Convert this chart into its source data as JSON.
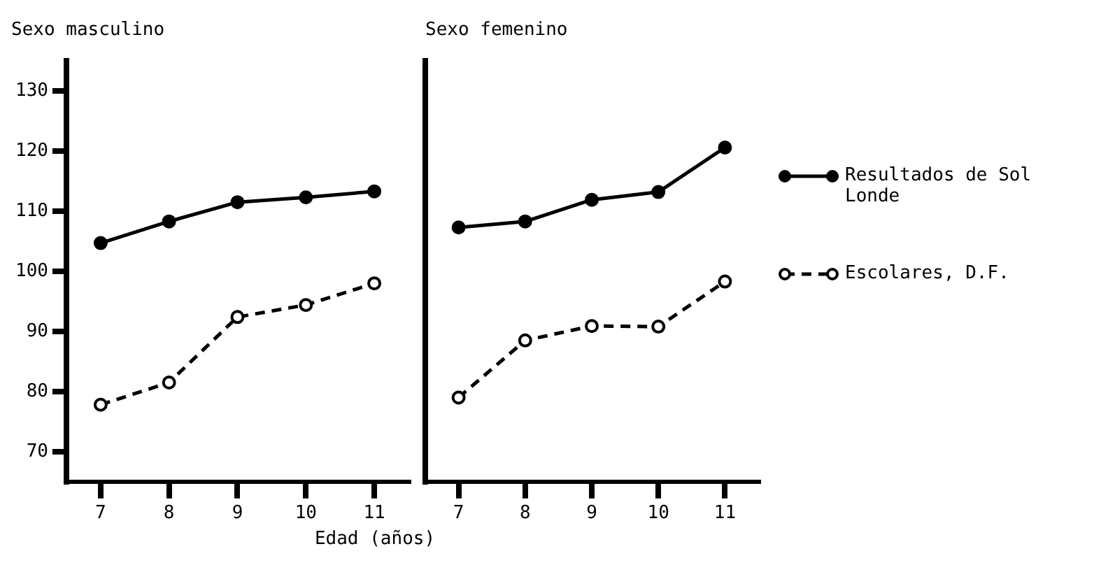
{
  "chart_data": [
    {
      "type": "line",
      "title": "Sexo masculino",
      "xlabel": "Edad (años)",
      "categories": [
        "7",
        "8",
        "9",
        "10",
        "11"
      ],
      "ylim": [
        65,
        135
      ],
      "yticks": [
        70,
        80,
        90,
        100,
        110,
        120,
        130
      ],
      "grid": false,
      "legend": false,
      "marker": "circle",
      "series": [
        {
          "color": "#000000",
          "line_style": "solid",
          "values": [
            104.7,
            108.3,
            111.5,
            112.3,
            113.3
          ]
        },
        {
          "color": "#000000",
          "line_style": "dashed",
          "values": [
            77.8,
            81.5,
            92.4,
            94.4,
            98
          ]
        }
      ]
    },
    {
      "type": "line",
      "title": "Sexo femenino",
      "categories": [
        "7",
        "8",
        "9",
        "10",
        "11"
      ],
      "ylim": [
        65,
        135
      ],
      "yticks": [
        70,
        80,
        90,
        100,
        110,
        120,
        130
      ],
      "grid": false,
      "legend": "right",
      "marker": "circle",
      "tick_labels": "x",
      "series": [
        {
          "name": "Resultados de Sol Londe",
          "color": "#000000",
          "line_style": "solid",
          "values": [
            107.3,
            108.3,
            111.9,
            113.2,
            120.6
          ]
        },
        {
          "name": "Escolares, D.F.",
          "color": "#000000",
          "line_style": "dashed",
          "values": [
            79,
            88.5,
            90.9,
            90.8,
            98.3
          ]
        }
      ]
    }
  ]
}
